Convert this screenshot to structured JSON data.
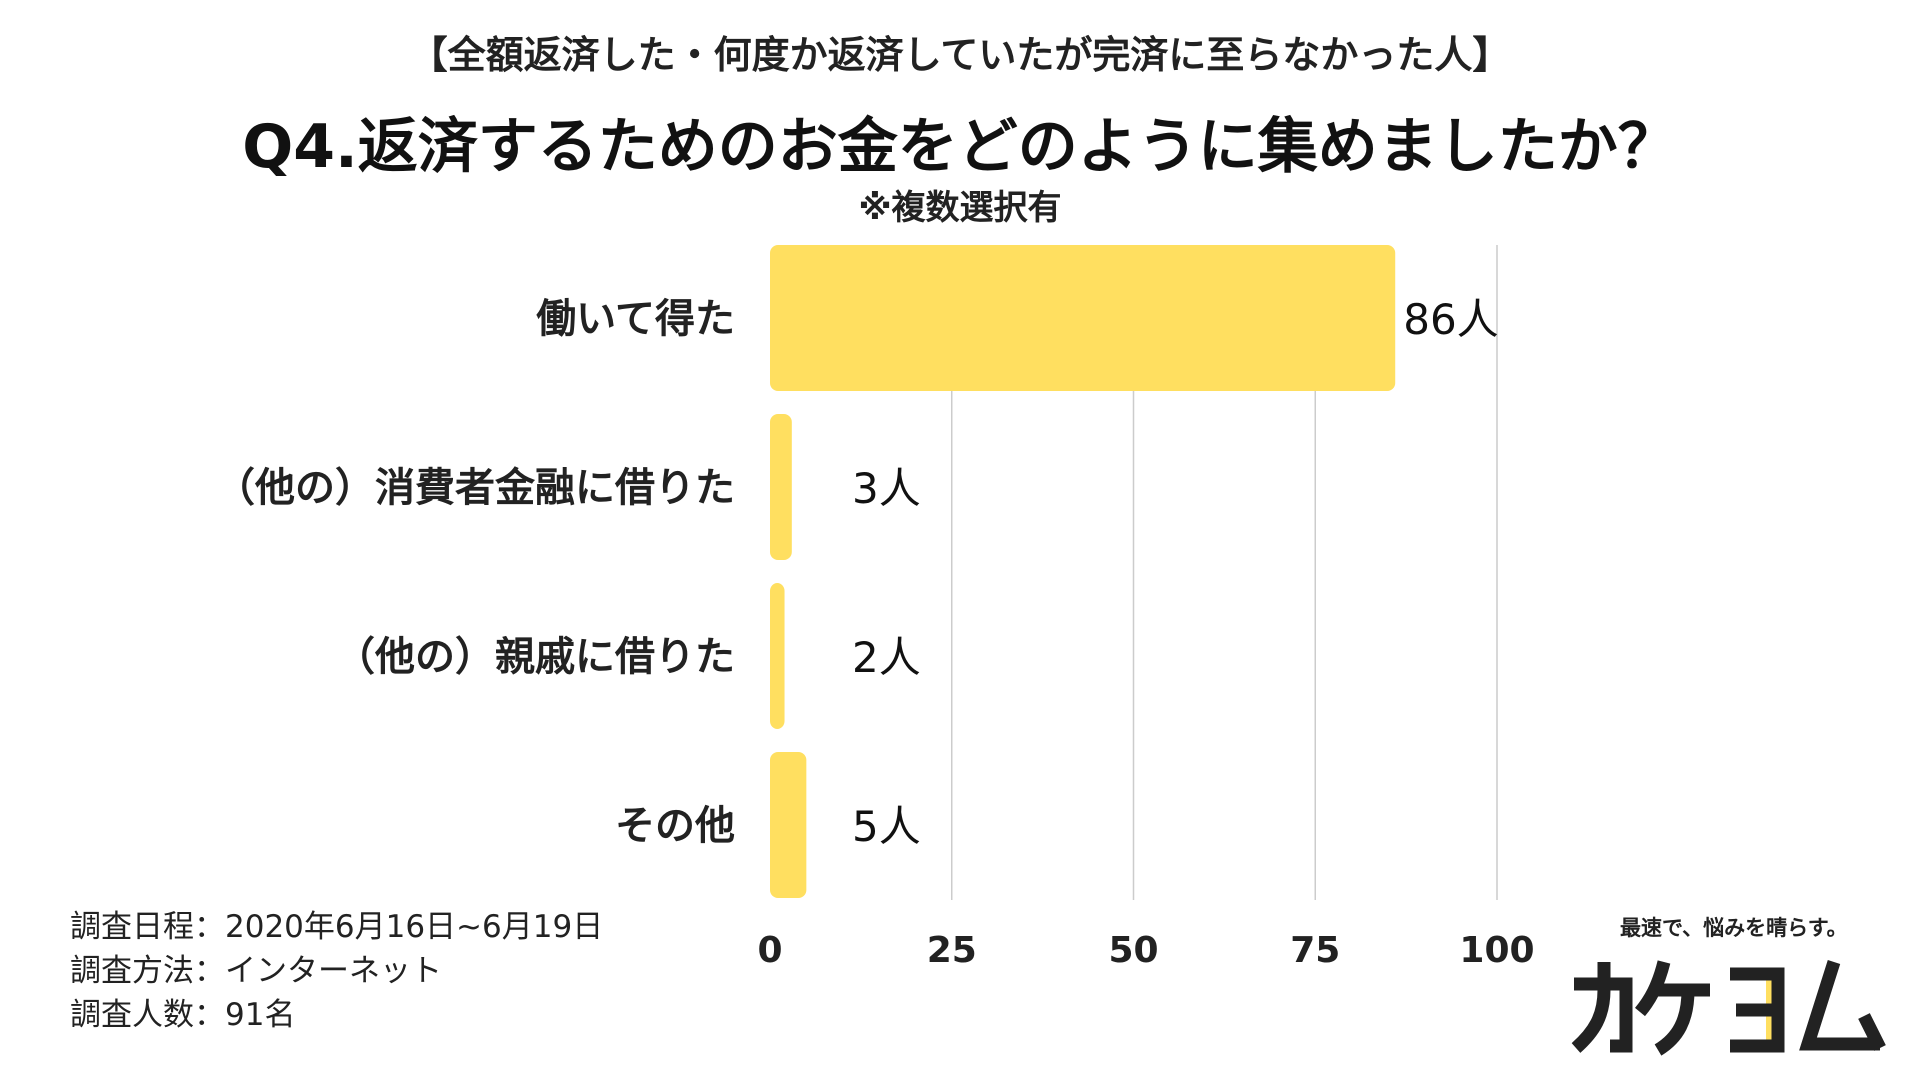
{
  "header": {
    "subtitle": "【全額返済した・何度か返済していたが完済に至らなかった人】",
    "title": "Q4.返済するためのお金をどのように集めましたか？",
    "note": "※複数選択有"
  },
  "chart_data": {
    "type": "bar",
    "orientation": "horizontal",
    "categories": [
      "働いて得た",
      "（他の）消費者金融に借りた",
      "（他の）親戚に借りた",
      "その他"
    ],
    "values": [
      86,
      3,
      2,
      5
    ],
    "data_labels": [
      "86人",
      "3人",
      "2人",
      "5人"
    ],
    "xlim": [
      0,
      100
    ],
    "xticks": [
      0,
      25,
      50,
      75,
      100
    ],
    "grid": true,
    "bar_color": "#ffdf60"
  },
  "survey": {
    "date": "調査日程：2020年6月16日~6月19日",
    "method": "調査方法：インターネット",
    "count": "調査人数：91名"
  },
  "logo": {
    "tagline": "最速で、悩みを晴らす。",
    "brand": "カケヨム",
    "brand_color": "#222222",
    "accent_color": "#ffdf60"
  }
}
